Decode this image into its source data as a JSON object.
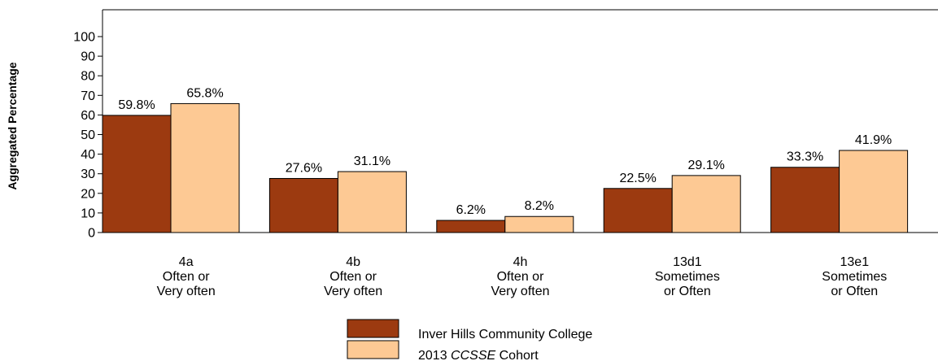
{
  "chart_data": {
    "type": "bar",
    "ylabel": "Aggregated Percentage",
    "ylim": [
      0,
      100
    ],
    "yticks": [
      0,
      10,
      20,
      30,
      40,
      50,
      60,
      70,
      80,
      90,
      100
    ],
    "categories": [
      [
        "4a",
        "Often or",
        "Very often"
      ],
      [
        "4b",
        "Often or",
        "Very often"
      ],
      [
        "4h",
        "Often or",
        "Very often"
      ],
      [
        "13d1",
        "Sometimes",
        "or Often"
      ],
      [
        "13e1",
        "Sometimes",
        "or Often"
      ]
    ],
    "series": [
      {
        "name": "Inver Hills Community College",
        "color": "#9c3a10",
        "values": [
          59.8,
          27.6,
          6.2,
          22.5,
          33.3
        ],
        "labels": [
          "59.8%",
          "27.6%",
          "6.2%",
          "22.5%",
          "33.3%"
        ]
      },
      {
        "name_prefix": "2013",
        "name_italic": "CCSSE",
        "name_suffix": "Cohort",
        "color": "#fdc994",
        "values": [
          65.8,
          31.1,
          8.2,
          29.1,
          41.9
        ],
        "labels": [
          "65.8%",
          "31.1%",
          "8.2%",
          "29.1%",
          "41.9%"
        ]
      }
    ],
    "grid": false,
    "legend": "bottom-center"
  }
}
